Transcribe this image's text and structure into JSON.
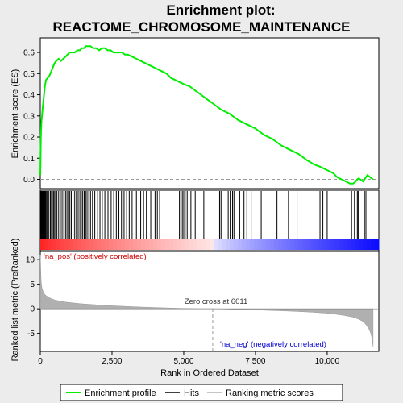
{
  "chart_data": {
    "type": "line",
    "title_line1": "Enrichment plot:",
    "title_line2": "REACTOME_CHROMOSOME_MAINTENANCE",
    "top_panel": {
      "ylabel": "Enrichment score (ES)",
      "ylim": [
        -0.04,
        0.665
      ],
      "yticks": [
        0.0,
        0.1,
        0.2,
        0.3,
        0.4,
        0.5,
        0.6
      ],
      "ytick_labels": [
        "0.0",
        "0.1",
        "0.2",
        "0.3",
        "0.4",
        "0.5",
        "0.6"
      ],
      "series": [
        {
          "name": "Enrichment profile",
          "color": "#00ee00",
          "x": [
            0,
            20,
            40,
            60,
            80,
            100,
            130,
            160,
            200,
            260,
            320,
            380,
            440,
            500,
            560,
            640,
            720,
            800,
            880,
            950,
            1020,
            1100,
            1200,
            1300,
            1380,
            1450,
            1520,
            1600,
            1680,
            1750,
            1850,
            1950,
            2050,
            2150,
            2250,
            2350,
            2450,
            2550,
            2650,
            2750,
            2850,
            2950,
            3050,
            3200,
            3350,
            3500,
            3650,
            3800,
            3950,
            4100,
            4250,
            4400,
            4550,
            4700,
            4850,
            5000,
            5200,
            5400,
            5600,
            5800,
            6000,
            6300,
            6600,
            6900,
            7200,
            7500,
            7800,
            8100,
            8400,
            8700,
            9000,
            9300,
            9550,
            9750,
            9900,
            10050,
            10200,
            10350,
            10500,
            10650,
            10800,
            10900,
            11000,
            11050,
            11100,
            11150,
            11200,
            11250,
            11300,
            11350,
            11400,
            11450,
            11500,
            11550,
            11600
          ],
          "y": [
            0.02,
            0.2,
            0.27,
            0.3,
            0.33,
            0.36,
            0.4,
            0.44,
            0.47,
            0.48,
            0.49,
            0.51,
            0.53,
            0.55,
            0.56,
            0.57,
            0.56,
            0.57,
            0.58,
            0.59,
            0.6,
            0.6,
            0.6,
            0.61,
            0.61,
            0.62,
            0.62,
            0.63,
            0.63,
            0.63,
            0.62,
            0.62,
            0.61,
            0.62,
            0.62,
            0.61,
            0.61,
            0.6,
            0.6,
            0.6,
            0.6,
            0.59,
            0.59,
            0.58,
            0.57,
            0.56,
            0.55,
            0.54,
            0.53,
            0.52,
            0.51,
            0.5,
            0.48,
            0.47,
            0.46,
            0.45,
            0.44,
            0.42,
            0.4,
            0.38,
            0.36,
            0.33,
            0.31,
            0.28,
            0.26,
            0.24,
            0.21,
            0.19,
            0.16,
            0.14,
            0.12,
            0.09,
            0.07,
            0.06,
            0.05,
            0.04,
            0.03,
            0.01,
            0.0,
            -0.01,
            -0.02,
            -0.02,
            -0.01,
            0.0,
            0.005,
            0.0,
            -0.005,
            -0.01,
            0.0,
            0.01,
            0.02,
            0.015,
            0.01,
            0.005,
            0.0
          ]
        }
      ]
    },
    "hits": [
      20,
      35,
      50,
      65,
      80,
      95,
      110,
      125,
      140,
      160,
      180,
      200,
      230,
      260,
      300,
      350,
      390,
      420,
      460,
      500,
      540,
      580,
      640,
      700,
      760,
      820,
      880,
      930,
      980,
      1030,
      1080,
      1140,
      1200,
      1260,
      1320,
      1380,
      1430,
      1480,
      1530,
      1580,
      1630,
      1690,
      1750,
      1820,
      1900,
      2000,
      2080,
      2160,
      2250,
      2360,
      2470,
      2560,
      2650,
      2740,
      2830,
      2920,
      3010,
      3100,
      3200,
      3350,
      3500,
      3600,
      3700,
      3850,
      4000,
      4080,
      4160,
      4850,
      4900,
      4950,
      5000,
      5050,
      5120,
      5250,
      5400,
      5700,
      6250,
      6300,
      6550,
      6620,
      6700,
      6750,
      6950,
      7100,
      7200,
      7350,
      7700,
      8250,
      8650,
      8950,
      9750,
      9850,
      10000,
      10850,
      10950,
      11050,
      11080,
      11300,
      11350
    ],
    "hits_label": "Hits",
    "bottom_panel": {
      "ylabel": "Ranked list metric (PreRanked)",
      "ylim": [
        -8.5,
        11.5
      ],
      "yticks": [
        -5,
        0,
        5,
        10
      ],
      "ytick_labels": [
        "-5",
        "0",
        "5",
        "10"
      ],
      "profile_label": "Ranking metric scores",
      "metric_x": [
        0,
        30,
        60,
        100,
        150,
        200,
        300,
        400,
        500,
        700,
        900,
        1200,
        1500,
        2000,
        2500,
        3000,
        3500,
        4000,
        4500,
        5000,
        5500,
        6011,
        6500,
        7000,
        7500,
        8000,
        8500,
        9000,
        9500,
        10000,
        10300,
        10600,
        10900,
        11100,
        11250,
        11350,
        11450,
        11520,
        11560,
        11590,
        11600
      ],
      "metric_y": [
        11,
        5.5,
        4.2,
        3.5,
        3.0,
        2.7,
        2.3,
        2.0,
        1.8,
        1.55,
        1.35,
        1.15,
        1.0,
        0.8,
        0.62,
        0.48,
        0.35,
        0.25,
        0.15,
        0.08,
        0.03,
        0.0,
        -0.06,
        -0.14,
        -0.22,
        -0.32,
        -0.42,
        -0.55,
        -0.7,
        -0.9,
        -1.1,
        -1.35,
        -1.7,
        -2.1,
        -2.6,
        -3.2,
        -4.0,
        -5.0,
        -6.0,
        -7.2,
        -7.8
      ],
      "na_pos_label": "'na_pos' (positively correlated)",
      "na_neg_label": "'na_neg' (negatively correlated)",
      "zero_cross_label": "Zero cross at 6011",
      "zero_cross": 6011
    },
    "xlabel": "Rank in Ordered Dataset",
    "xlim": [
      0,
      11800
    ],
    "xticks": [
      0,
      2500,
      5000,
      7500,
      10000
    ],
    "xtick_labels": [
      "0",
      "2,500",
      "5,000",
      "7,500",
      "10,000"
    ],
    "colors": {
      "profile": "#00ee00",
      "hits": "#000000",
      "metric_fill": "#b0b0b0",
      "na_pos": "#cc0000",
      "na_neg": "#0000cc",
      "heat_pos": "#ff0000",
      "heat_neg": "#0000ff"
    },
    "legend": [
      {
        "label": "Enrichment profile"
      },
      {
        "label": "Hits"
      },
      {
        "label": "Ranking metric scores"
      }
    ]
  }
}
